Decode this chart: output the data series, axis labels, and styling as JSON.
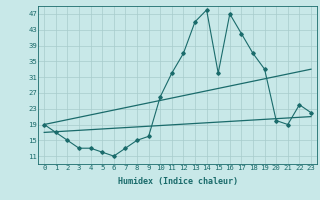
{
  "xlabel": "Humidex (Indice chaleur)",
  "bg_color": "#c8e8e8",
  "line_color": "#1a6b6b",
  "grid_color": "#a8cccc",
  "xlim": [
    -0.5,
    23.5
  ],
  "ylim": [
    9,
    49
  ],
  "yticks": [
    11,
    15,
    19,
    23,
    27,
    31,
    35,
    39,
    43,
    47
  ],
  "xticks": [
    0,
    1,
    2,
    3,
    4,
    5,
    6,
    7,
    8,
    9,
    10,
    11,
    12,
    13,
    14,
    15,
    16,
    17,
    18,
    19,
    20,
    21,
    22,
    23
  ],
  "main_x": [
    0,
    1,
    2,
    3,
    4,
    5,
    6,
    7,
    8,
    9,
    10,
    11,
    12,
    13,
    14,
    15,
    16,
    17,
    18,
    19,
    20,
    21,
    22,
    23
  ],
  "main_y": [
    19,
    17,
    15,
    13,
    13,
    12,
    11,
    13,
    15,
    16,
    26,
    32,
    37,
    45,
    48,
    32,
    47,
    42,
    37,
    33,
    20,
    19,
    24,
    22
  ],
  "line2_x": [
    0,
    23
  ],
  "line2_y": [
    19,
    33
  ],
  "line3_x": [
    0,
    23
  ],
  "line3_y": [
    17,
    21
  ]
}
